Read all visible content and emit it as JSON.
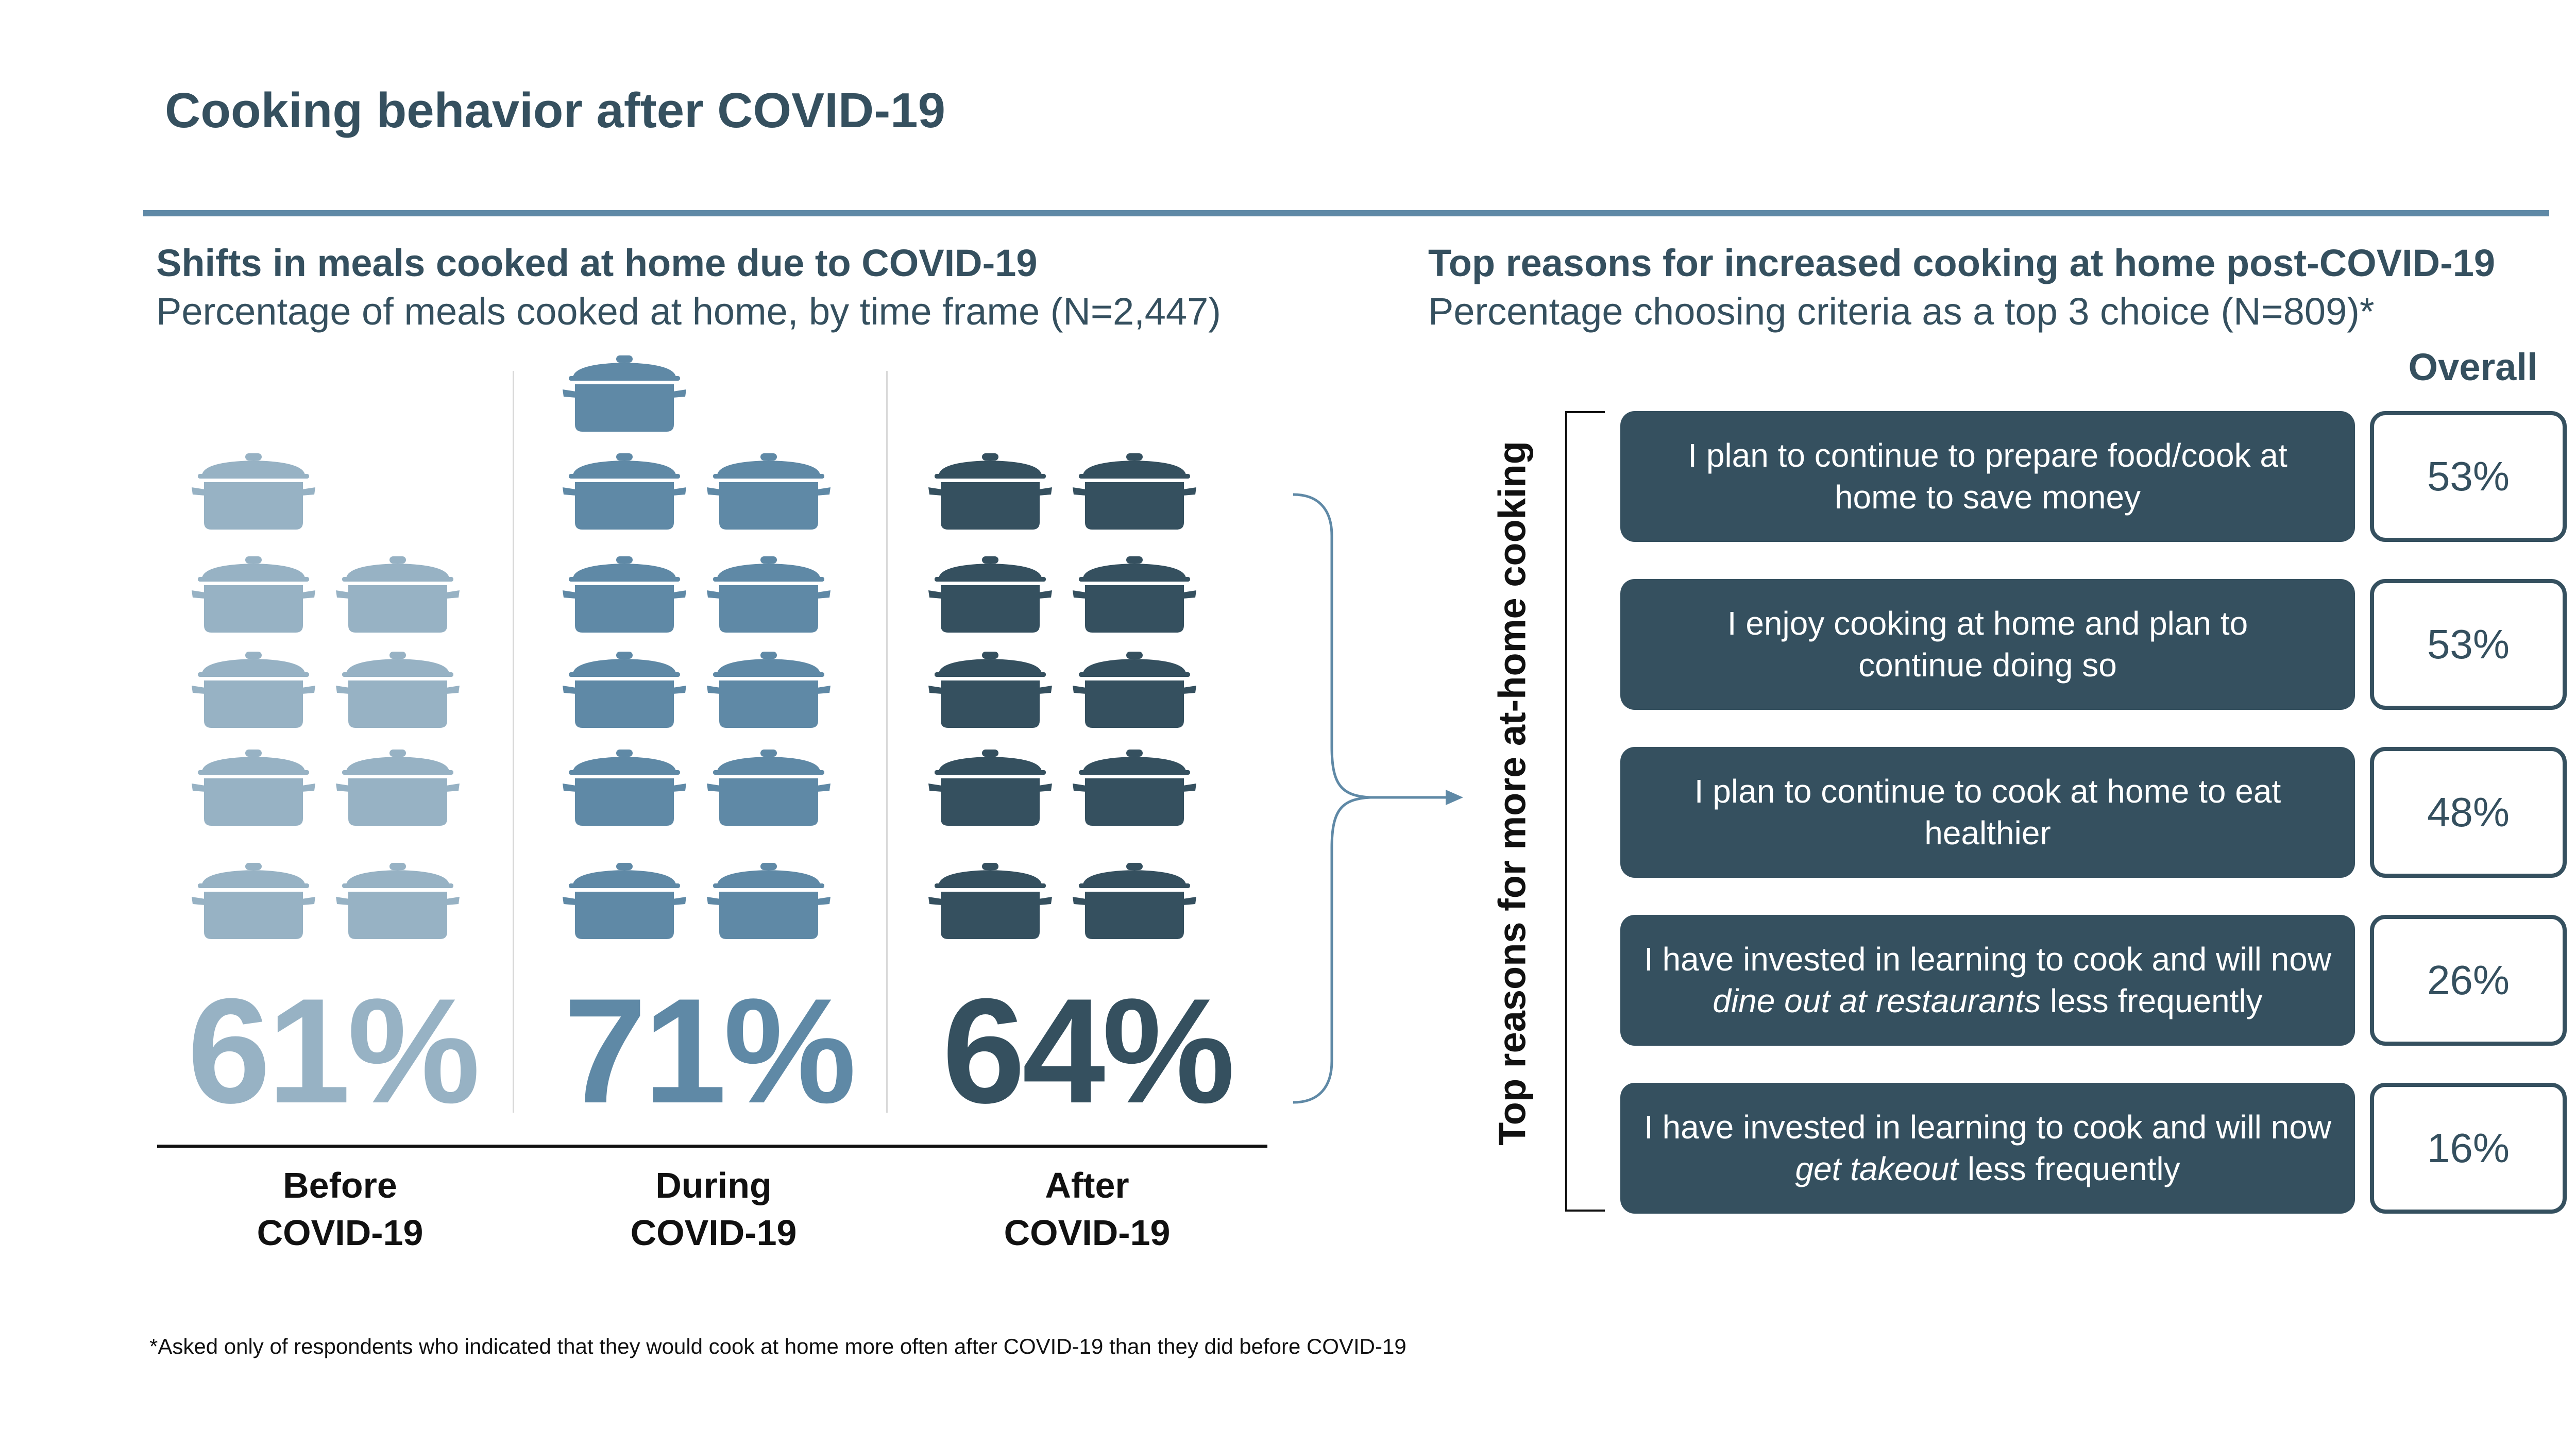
{
  "title": "Cooking behavior after COVID-19",
  "left_panel": {
    "heading": "Shifts in meals cooked at home due to COVID-19",
    "subheading": "Percentage of meals cooked at home, by time frame (N=2,447)"
  },
  "right_panel": {
    "heading": "Top reasons for increased cooking at home post-COVID-19",
    "subheading": "Percentage choosing criteria as a top 3 choice (N=809)*",
    "overall_label": "Overall",
    "vertical_label": "Top reasons for more at-home cooking"
  },
  "colors": {
    "before": "#97b2c4",
    "during": "#5f89a6",
    "after": "#35505f",
    "reason_box": "#35505f"
  },
  "chart_data": [
    {
      "type": "bar",
      "encoding": "pictogram-pots",
      "icon": "cooking-pot-icon",
      "categories": [
        "Before COVID-19",
        "During COVID-19",
        "After COVID-19"
      ],
      "category_lines": [
        [
          "Before",
          "COVID-19"
        ],
        [
          "During",
          "COVID-19"
        ],
        [
          "After",
          "COVID-19"
        ]
      ],
      "values": [
        61,
        71,
        64
      ],
      "value_labels": [
        "61%",
        "71%",
        "64%"
      ],
      "pot_counts": [
        9,
        11,
        10
      ],
      "colors": [
        "#97b2c4",
        "#5f89a6",
        "#35505f"
      ]
    },
    {
      "type": "table",
      "column_header": "Overall",
      "rows": [
        {
          "parts": [
            {
              "text": "I plan to continue to prepare food/cook at"
            },
            {
              "text": "home to save money"
            }
          ],
          "value": 53,
          "value_label": "53%"
        },
        {
          "parts": [
            {
              "text": "I enjoy cooking at home and plan to"
            },
            {
              "text": "continue doing so"
            }
          ],
          "value": 53,
          "value_label": "53%"
        },
        {
          "parts": [
            {
              "text": "I plan to continue to cook at home to eat"
            },
            {
              "text": "healthier"
            }
          ],
          "value": 48,
          "value_label": "48%"
        },
        {
          "parts": [
            {
              "text": "I have invested in learning to cook and will now"
            },
            {
              "text": "dine out at restaurants",
              "italic": true,
              "tail": " less frequently"
            }
          ],
          "value": 26,
          "value_label": "26%"
        },
        {
          "parts": [
            {
              "text": "I have invested in learning to cook and will now"
            },
            {
              "text": "get takeout",
              "italic": true,
              "tail": " less frequently"
            }
          ],
          "value": 16,
          "value_label": "16%"
        }
      ]
    }
  ],
  "footnote": "*Asked only of respondents who indicated that they would cook at home more often after COVID-19 than they did before COVID-19"
}
